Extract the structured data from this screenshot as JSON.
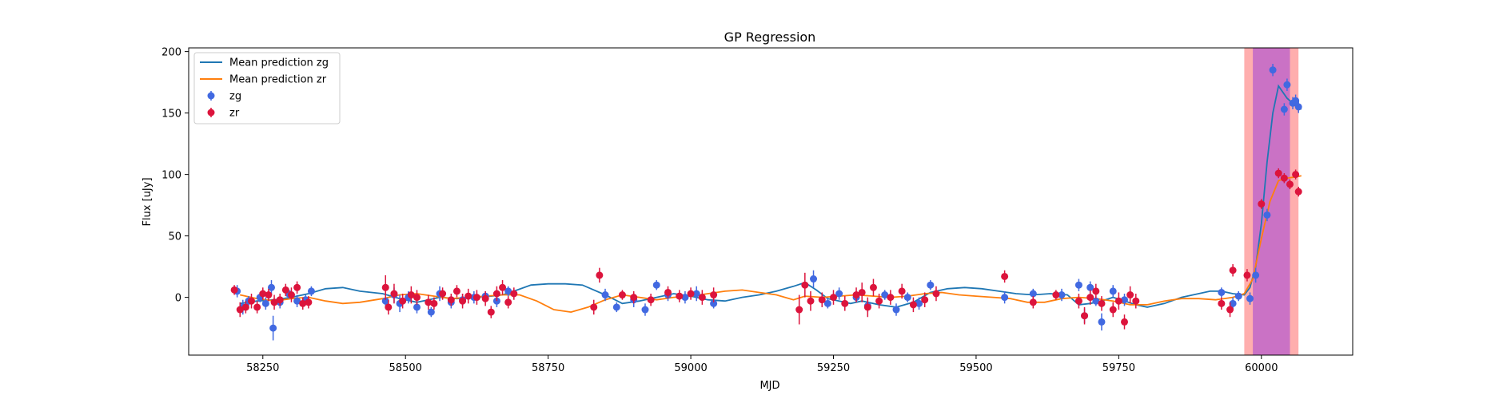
{
  "chart_data": {
    "type": "scatter",
    "title": "GP Regression",
    "xlabel": "MJD",
    "ylabel": "Flux [uJy]",
    "xlim": [
      58120,
      60160
    ],
    "ylim": [
      -47,
      203
    ],
    "xticks": [
      58250,
      58500,
      58750,
      59000,
      59250,
      59500,
      59750,
      60000
    ],
    "yticks": [
      0,
      50,
      100,
      150,
      200
    ],
    "grid": false,
    "legend": {
      "location": "upper-left",
      "entries": [
        {
          "label": "Mean prediction zg",
          "kind": "line",
          "color": "#1f77b4"
        },
        {
          "label": "Mean prediction zr",
          "kind": "line",
          "color": "#ff7f0e"
        },
        {
          "label": "zg",
          "kind": "marker",
          "color": "#4169e1"
        },
        {
          "label": "zr",
          "kind": "marker",
          "color": "#dc143c"
        }
      ]
    },
    "shaded_regions": [
      {
        "x0": 59970,
        "x1": 60065,
        "color": "#ff6b6b",
        "opacity": 0.55
      },
      {
        "x0": 59985,
        "x1": 60050,
        "color": "#8a2be2",
        "opacity": 0.45
      }
    ],
    "series": [
      {
        "name": "Mean prediction zg",
        "type": "line",
        "color": "#1f77b4",
        "x": [
          58210,
          58240,
          58270,
          58300,
          58330,
          58360,
          58390,
          58420,
          58460,
          58490,
          58520,
          58540,
          58560,
          58590,
          58620,
          58650,
          58670,
          58690,
          58720,
          58750,
          58780,
          58810,
          58850,
          58880,
          58910,
          58940,
          58970,
          59000,
          59030,
          59060,
          59090,
          59120,
          59150,
          59180,
          59200,
          59220,
          59240,
          59260,
          59280,
          59300,
          59330,
          59360,
          59390,
          59420,
          59450,
          59480,
          59510,
          59540,
          59570,
          59600,
          59630,
          59660,
          59680,
          59700,
          59720,
          59740,
          59760,
          59780,
          59800,
          59830,
          59860,
          59890,
          59910,
          59930,
          59950,
          59970,
          59980,
          59990,
          60000,
          60010,
          60020,
          60030,
          60045,
          60060,
          60070
        ],
        "values": [
          -5,
          -3,
          -2,
          0,
          3,
          7,
          8,
          5,
          3,
          -1,
          -4,
          -2,
          0,
          -1,
          0,
          1,
          2,
          5,
          10,
          11,
          11,
          10,
          2,
          -5,
          -3,
          0,
          3,
          1,
          -2,
          -3,
          0,
          2,
          5,
          9,
          12,
          6,
          -1,
          -3,
          -5,
          -3,
          -6,
          -8,
          -4,
          4,
          7,
          8,
          7,
          5,
          3,
          2,
          3,
          2,
          -6,
          -5,
          -3,
          0,
          -3,
          -6,
          -8,
          -5,
          0,
          3,
          5,
          5,
          3,
          2,
          8,
          25,
          60,
          110,
          150,
          172,
          162,
          156,
          153
        ]
      },
      {
        "name": "Mean prediction zr",
        "type": "line",
        "color": "#ff7f0e",
        "x": [
          58210,
          58240,
          58270,
          58300,
          58330,
          58360,
          58390,
          58420,
          58460,
          58490,
          58520,
          58550,
          58580,
          58610,
          58640,
          58670,
          58700,
          58730,
          58760,
          58790,
          58820,
          58850,
          58880,
          58910,
          58940,
          58970,
          59000,
          59030,
          59060,
          59090,
          59120,
          59150,
          59180,
          59200,
          59230,
          59260,
          59290,
          59320,
          59350,
          59380,
          59410,
          59440,
          59470,
          59500,
          59530,
          59560,
          59590,
          59620,
          59650,
          59680,
          59710,
          59740,
          59770,
          59800,
          59830,
          59860,
          59890,
          59920,
          59950,
          59970,
          59985,
          60000,
          60015,
          60030,
          60045,
          60060,
          60070
        ],
        "values": [
          2,
          -1,
          -3,
          -1,
          0,
          -3,
          -5,
          -4,
          -1,
          2,
          3,
          1,
          -1,
          0,
          1,
          2,
          2,
          -3,
          -10,
          -12,
          -8,
          -2,
          2,
          0,
          -2,
          0,
          1,
          3,
          5,
          6,
          4,
          2,
          -2,
          1,
          0,
          1,
          2,
          1,
          0,
          1,
          3,
          4,
          2,
          1,
          0,
          -1,
          -4,
          -4,
          -1,
          0,
          -1,
          -3,
          -6,
          -6,
          -3,
          -1,
          -1,
          -2,
          0,
          3,
          15,
          48,
          78,
          95,
          97,
          98,
          99
        ]
      },
      {
        "name": "zg",
        "type": "scatter",
        "color": "#4169e1",
        "x": [
          58205,
          58215,
          58225,
          58245,
          58255,
          58265,
          58268,
          58280,
          58295,
          58310,
          58325,
          58335,
          58465,
          58480,
          58490,
          58505,
          58520,
          58545,
          58560,
          58580,
          58600,
          58620,
          58640,
          58660,
          58680,
          58850,
          58870,
          58900,
          58920,
          58940,
          58960,
          58990,
          59010,
          59040,
          59215,
          59240,
          59260,
          59290,
          59310,
          59340,
          59360,
          59380,
          59400,
          59420,
          59550,
          59600,
          59650,
          59680,
          59690,
          59700,
          59710,
          59720,
          59740,
          59760,
          59930,
          59950,
          59960,
          59980,
          59990,
          60010,
          60020,
          60040,
          60045,
          60055,
          60060,
          60065
        ],
        "values": [
          5,
          -8,
          -3,
          0,
          -5,
          8,
          -25,
          -4,
          3,
          -3,
          -2,
          5,
          -3,
          2,
          -5,
          0,
          -8,
          -12,
          3,
          -4,
          -2,
          0,
          1,
          -3,
          5,
          2,
          -8,
          -2,
          -10,
          10,
          2,
          0,
          3,
          -5,
          15,
          -5,
          3,
          0,
          -7,
          2,
          -10,
          0,
          -5,
          10,
          0,
          3,
          2,
          10,
          -15,
          8,
          -3,
          -20,
          5,
          -2,
          4,
          -5,
          1,
          -1,
          18,
          67,
          185,
          153,
          173,
          158,
          160,
          155
        ],
        "errors": [
          5,
          6,
          4,
          4,
          5,
          6,
          10,
          5,
          4,
          5,
          4,
          4,
          5,
          6,
          7,
          5,
          5,
          4,
          6,
          5,
          5,
          5,
          4,
          5,
          4,
          5,
          4,
          6,
          5,
          4,
          5,
          5,
          6,
          4,
          7,
          4,
          5,
          4,
          5,
          4,
          5,
          4,
          5,
          4,
          5,
          4,
          5,
          5,
          6,
          5,
          4,
          7,
          5,
          5,
          4,
          5,
          4,
          5,
          6,
          5,
          5,
          5,
          5,
          5,
          5,
          5
        ]
      },
      {
        "name": "zr",
        "type": "scatter",
        "color": "#dc143c",
        "x": [
          58200,
          58210,
          58220,
          58230,
          58240,
          58250,
          58260,
          58270,
          58280,
          58290,
          58300,
          58310,
          58320,
          58330,
          58465,
          58470,
          58480,
          58495,
          58510,
          58520,
          58540,
          58550,
          58565,
          58580,
          58590,
          58600,
          58610,
          58625,
          58640,
          58650,
          58660,
          58670,
          58680,
          58690,
          58830,
          58840,
          58880,
          58900,
          58930,
          58960,
          58980,
          59000,
          59020,
          59040,
          59190,
          59200,
          59210,
          59230,
          59250,
          59270,
          59290,
          59300,
          59310,
          59320,
          59330,
          59350,
          59370,
          59390,
          59410,
          59430,
          59550,
          59600,
          59640,
          59680,
          59690,
          59700,
          59710,
          59720,
          59740,
          59750,
          59760,
          59770,
          59780,
          59930,
          59945,
          59950,
          59975,
          60000,
          60030,
          60040,
          60050,
          60060,
          60065
        ],
        "values": [
          6,
          -10,
          -8,
          -3,
          -8,
          3,
          2,
          -4,
          -2,
          6,
          2,
          8,
          -5,
          -4,
          8,
          -8,
          3,
          -3,
          2,
          0,
          -4,
          -5,
          3,
          -2,
          5,
          -3,
          1,
          0,
          -1,
          -12,
          3,
          8,
          -4,
          3,
          -8,
          18,
          2,
          0,
          -2,
          4,
          1,
          3,
          0,
          2,
          -10,
          10,
          -3,
          -2,
          0,
          -5,
          2,
          4,
          -8,
          8,
          -3,
          0,
          5,
          -6,
          -2,
          3,
          17,
          -4,
          2,
          -3,
          -15,
          0,
          5,
          -5,
          -10,
          -3,
          -20,
          2,
          -3,
          -5,
          -10,
          22,
          18,
          76,
          101,
          97,
          92,
          100,
          86
        ],
        "errors": [
          4,
          6,
          5,
          6,
          5,
          5,
          5,
          6,
          5,
          5,
          6,
          5,
          5,
          5,
          10,
          6,
          8,
          6,
          7,
          6,
          6,
          5,
          5,
          5,
          5,
          6,
          6,
          6,
          6,
          5,
          6,
          6,
          5,
          5,
          6,
          6,
          4,
          5,
          5,
          5,
          5,
          5,
          6,
          6,
          12,
          10,
          8,
          6,
          6,
          6,
          6,
          8,
          8,
          7,
          6,
          6,
          6,
          6,
          6,
          6,
          5,
          5,
          4,
          6,
          7,
          6,
          6,
          6,
          6,
          7,
          6,
          7,
          6,
          5,
          6,
          5,
          5,
          4,
          4,
          4,
          4,
          4,
          4
        ]
      }
    ]
  }
}
